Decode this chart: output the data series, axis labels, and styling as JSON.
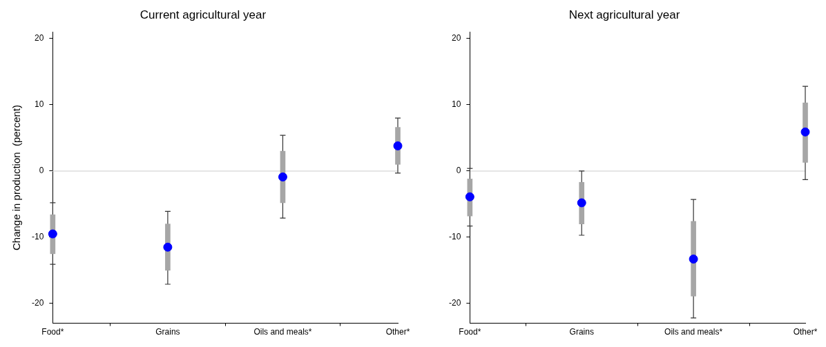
{
  "chart_data": [
    {
      "type": "scatter",
      "title": "Current agricultural year",
      "ylabel": "Change in production  (percent)",
      "categories": [
        "Food*",
        "Grains",
        "Oils and meals*",
        "Other*"
      ],
      "ylim": [
        -23,
        21
      ],
      "yticks": [
        -20,
        -10,
        0,
        10,
        20
      ],
      "grid": false,
      "legend": false,
      "marker": "circle",
      "ref_lines": [
        {
          "axis": "y",
          "value": 0,
          "color": "#dddddd"
        }
      ],
      "series": [
        {
          "type": "bar",
          "color": "#a6a6a6",
          "base": [
            -12.5,
            -15,
            -4.8,
            1
          ],
          "values": [
            5.9,
            7,
            7.8,
            5.6
          ]
        },
        {
          "color": "#0000ff",
          "values": [
            -9.5,
            -11.5,
            -0.9,
            3.8
          ],
          "errors": [
            [
              -14.1,
              -4.8
            ],
            [
              -17.1,
              -6.1
            ],
            [
              -7.1,
              5.4
            ],
            [
              -0.3,
              8
            ]
          ]
        }
      ]
    },
    {
      "type": "scatter",
      "title": "Next agricultural year",
      "categories": [
        "Food*",
        "Grains",
        "Oils and meals*",
        "Other*"
      ],
      "ylim": [
        -23,
        21
      ],
      "yticks": [
        -20,
        -10,
        0,
        10,
        20
      ],
      "grid": false,
      "legend": false,
      "marker": "circle",
      "ref_lines": [
        {
          "axis": "y",
          "value": 0,
          "color": "#dddddd"
        }
      ],
      "series": [
        {
          "type": "bar",
          "color": "#a6a6a6",
          "base": [
            -6.8,
            -8,
            -18.9,
            1.3
          ],
          "values": [
            5.6,
            6.3,
            11.3,
            9
          ]
        },
        {
          "color": "#0000ff",
          "values": [
            -3.9,
            -4.8,
            -13.3,
            5.9
          ],
          "errors": [
            [
              -8.3,
              0.4
            ],
            [
              -9.7,
              0
            ],
            [
              -22.2,
              -4.3
            ],
            [
              -1.3,
              12.8
            ]
          ]
        }
      ]
    }
  ]
}
